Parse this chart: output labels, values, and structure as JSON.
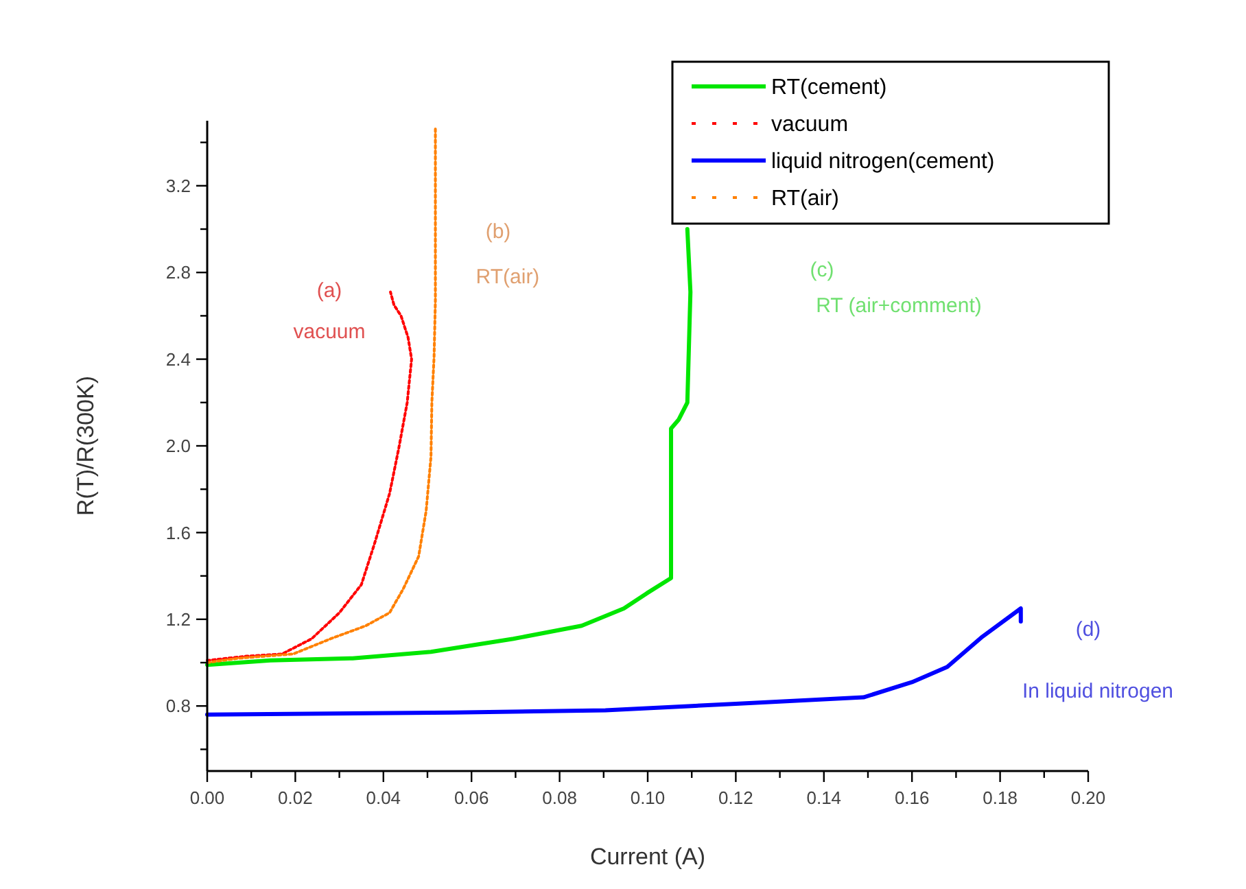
{
  "chart_data": {
    "type": "line",
    "xlabel": "Current (A)",
    "ylabel": "R(T)/R(300K)",
    "xlim": [
      0,
      0.2
    ],
    "ylim": [
      0.5,
      3.5
    ],
    "xticks": [
      {
        "value": 0,
        "label": "0.00"
      },
      {
        "value": 0.01,
        "label": null
      },
      {
        "value": 0.02,
        "label": "0.02"
      },
      {
        "value": 0.03,
        "label": null
      },
      {
        "value": 0.04,
        "label": "0.04"
      },
      {
        "value": 0.05,
        "label": null
      },
      {
        "value": 0.06,
        "label": "0.06"
      },
      {
        "value": 0.07,
        "label": null
      },
      {
        "value": 0.08,
        "label": "0.08"
      },
      {
        "value": 0.09,
        "label": null
      },
      {
        "value": 0.1,
        "label": "0.10"
      },
      {
        "value": 0.11,
        "label": null
      },
      {
        "value": 0.12,
        "label": "0.12"
      },
      {
        "value": 0.13,
        "label": null
      },
      {
        "value": 0.14,
        "label": "0.14"
      },
      {
        "value": 0.15,
        "label": null
      },
      {
        "value": 0.16,
        "label": "0.16"
      },
      {
        "value": 0.17,
        "label": null
      },
      {
        "value": 0.18,
        "label": "0.18"
      },
      {
        "value": 0.19,
        "label": null
      },
      {
        "value": 0.2,
        "label": "0.20"
      }
    ],
    "yticks": [
      {
        "value": 0.6,
        "label": null
      },
      0.8,
      {
        "value": 1.0,
        "label": null
      },
      1.2,
      {
        "value": 1.4,
        "label": null
      },
      1.6,
      {
        "value": 1.8,
        "label": null
      },
      {
        "value": 2.0,
        "label": "2.0"
      },
      {
        "value": 2.2,
        "label": null
      },
      2.4,
      {
        "value": 2.6,
        "label": null
      },
      2.8,
      {
        "value": 3.0,
        "label": null
      },
      3.2,
      {
        "value": 3.4,
        "label": null
      }
    ],
    "grid": false,
    "legend": "top right",
    "marker": "none",
    "series": [
      {
        "name": "RT(cement)",
        "color": "#00e600",
        "line_style": "solid",
        "x": [
          0,
          0.0143,
          0.033,
          0.0508,
          0.0695,
          0.085,
          0.0946,
          0.0998,
          0.1053,
          0.1053,
          0.107,
          0.109,
          0.1097,
          0.109
        ],
        "values": [
          0.99,
          1.01,
          1.02,
          1.05,
          1.11,
          1.17,
          1.25,
          1.32,
          1.39,
          2.08,
          2.12,
          2.2,
          2.71,
          3.0
        ]
      },
      {
        "name": "vacuum",
        "color": "#ff0000",
        "line_style": "dotted",
        "x": [
          0,
          0.009,
          0.017,
          0.0237,
          0.03,
          0.035,
          0.038,
          0.0414,
          0.0435,
          0.0454,
          0.0464,
          0.0456,
          0.044,
          0.0424,
          0.0416
        ],
        "values": [
          1.01,
          1.03,
          1.04,
          1.11,
          1.23,
          1.36,
          1.55,
          1.78,
          1.99,
          2.2,
          2.4,
          2.5,
          2.6,
          2.65,
          2.71
        ]
      },
      {
        "name": "liquid nitrogen(cement)",
        "color": "#0000ff",
        "line_style": "solid",
        "x": [
          0,
          0.056,
          0.0904,
          0.11,
          0.12,
          0.149,
          0.16,
          0.168,
          0.176,
          0.1847,
          0.1847
        ],
        "values": [
          0.76,
          0.77,
          0.78,
          0.8,
          0.81,
          0.84,
          0.91,
          0.98,
          1.12,
          1.25,
          1.19
        ]
      },
      {
        "name": "RT(air)",
        "color": "#ff8000",
        "line_style": "dotted",
        "x": [
          0,
          0.007,
          0.0195,
          0.028,
          0.036,
          0.0414,
          0.0445,
          0.048,
          0.0497,
          0.0508,
          0.051,
          0.0515,
          0.0518,
          0.0518,
          0.0518
        ],
        "values": [
          1.0,
          1.02,
          1.04,
          1.11,
          1.17,
          1.23,
          1.34,
          1.49,
          1.7,
          1.95,
          2.2,
          2.41,
          2.67,
          3.05,
          3.47
        ]
      }
    ],
    "annotations": [
      "(a)",
      "vacuum",
      "(b)",
      "RT(air)",
      "(c)",
      "RT (air+comment)",
      "(d)",
      "In liquid nitrogen"
    ]
  }
}
